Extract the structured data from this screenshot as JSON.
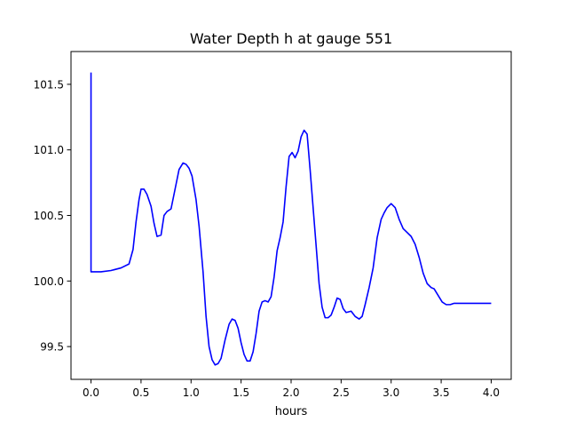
{
  "chart_data": {
    "type": "line",
    "title": "Water Depth h at gauge 551",
    "xlabel": "hours",
    "ylabel": "",
    "xlim": [
      -0.2,
      4.2
    ],
    "ylim": [
      99.25,
      101.75
    ],
    "xticks": [
      0.0,
      0.5,
      1.0,
      1.5,
      2.0,
      2.5,
      3.0,
      3.5,
      4.0
    ],
    "xtick_labels": [
      "0.0",
      "0.5",
      "1.0",
      "1.5",
      "2.0",
      "2.5",
      "3.0",
      "3.5",
      "4.0"
    ],
    "yticks": [
      99.5,
      100.0,
      100.5,
      101.0,
      101.5
    ],
    "ytick_labels": [
      "99.5",
      "100.0",
      "100.5",
      "101.0",
      "101.5"
    ],
    "grid": false,
    "series": [
      {
        "color": "#0000ff",
        "x": [
          0.0,
          0.0,
          0.0,
          0.1,
          0.2,
          0.3,
          0.38,
          0.42,
          0.45,
          0.48,
          0.5,
          0.53,
          0.56,
          0.6,
          0.63,
          0.66,
          0.7,
          0.73,
          0.76,
          0.8,
          0.84,
          0.88,
          0.92,
          0.95,
          0.98,
          1.01,
          1.05,
          1.08,
          1.12,
          1.15,
          1.18,
          1.21,
          1.24,
          1.27,
          1.3,
          1.34,
          1.38,
          1.41,
          1.44,
          1.47,
          1.5,
          1.53,
          1.56,
          1.59,
          1.62,
          1.65,
          1.68,
          1.71,
          1.74,
          1.77,
          1.8,
          1.83,
          1.86,
          1.89,
          1.92,
          1.95,
          1.98,
          2.01,
          2.04,
          2.07,
          2.1,
          2.13,
          2.16,
          2.19,
          2.22,
          2.25,
          2.28,
          2.31,
          2.34,
          2.37,
          2.4,
          2.43,
          2.46,
          2.49,
          2.52,
          2.55,
          2.6,
          2.64,
          2.68,
          2.71,
          2.74,
          2.78,
          2.82,
          2.86,
          2.9,
          2.93,
          2.96,
          3.0,
          3.04,
          3.08,
          3.12,
          3.16,
          3.2,
          3.24,
          3.28,
          3.32,
          3.36,
          3.4,
          3.43,
          3.47,
          3.51,
          3.55,
          3.59,
          3.63,
          3.67,
          3.71,
          3.75,
          3.8,
          3.84,
          3.88,
          3.92,
          3.96,
          4.0
        ],
        "values": [
          101.59,
          100.07,
          100.07,
          100.07,
          100.08,
          100.1,
          100.13,
          100.24,
          100.45,
          100.62,
          100.7,
          100.7,
          100.66,
          100.57,
          100.44,
          100.34,
          100.35,
          100.5,
          100.53,
          100.55,
          100.7,
          100.85,
          100.9,
          100.89,
          100.86,
          100.8,
          100.62,
          100.42,
          100.07,
          99.73,
          99.5,
          99.4,
          99.36,
          99.37,
          99.41,
          99.55,
          99.67,
          99.71,
          99.7,
          99.64,
          99.53,
          99.44,
          99.39,
          99.39,
          99.46,
          99.6,
          99.77,
          99.84,
          99.85,
          99.84,
          99.88,
          100.03,
          100.23,
          100.33,
          100.45,
          100.72,
          100.95,
          100.98,
          100.94,
          100.99,
          101.1,
          101.15,
          101.12,
          100.85,
          100.56,
          100.27,
          99.98,
          99.8,
          99.72,
          99.72,
          99.74,
          99.8,
          99.87,
          99.86,
          99.79,
          99.76,
          99.77,
          99.73,
          99.71,
          99.73,
          99.82,
          99.95,
          100.1,
          100.33,
          100.47,
          100.52,
          100.56,
          100.59,
          100.56,
          100.47,
          100.4,
          100.37,
          100.34,
          100.28,
          100.18,
          100.06,
          99.98,
          99.95,
          99.94,
          99.89,
          99.84,
          99.82,
          99.82,
          99.83,
          99.83,
          99.83,
          99.83,
          99.83,
          99.83,
          99.83,
          99.83,
          99.83,
          99.83
        ]
      }
    ]
  }
}
